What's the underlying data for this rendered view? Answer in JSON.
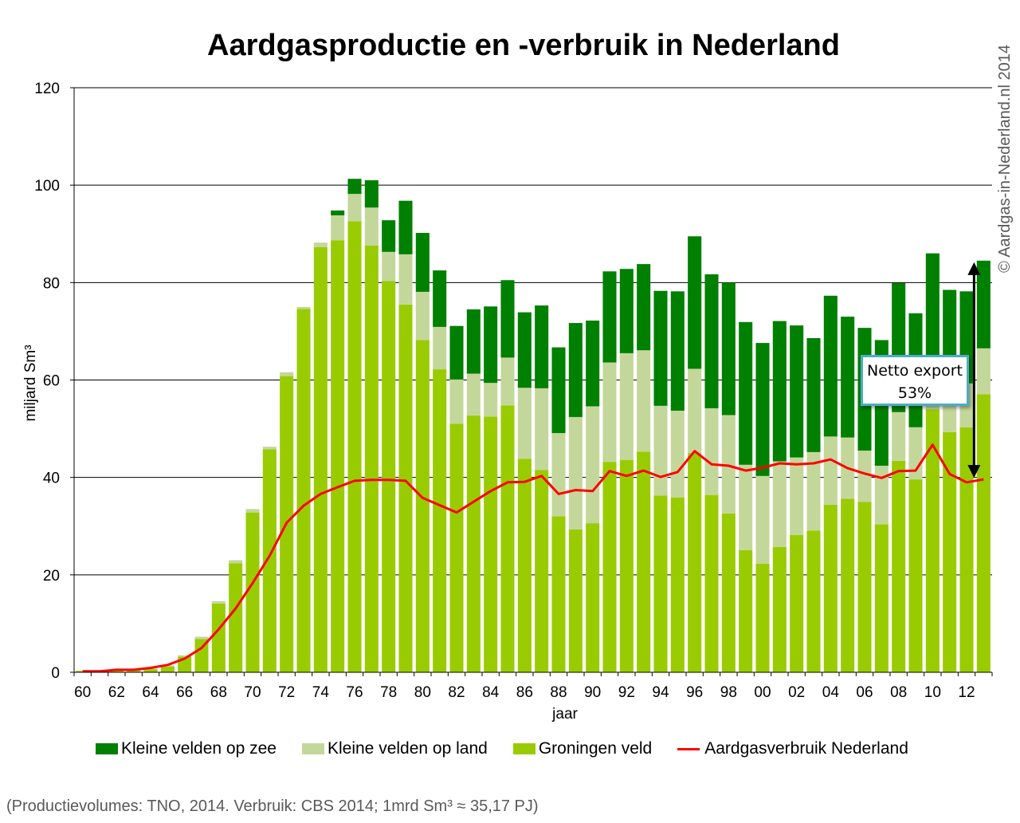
{
  "chart_data": {
    "type": "bar",
    "stacked": true,
    "title": "Aardgasproductie en -verbruik in Nederland",
    "xlabel": "jaar",
    "ylabel": "miljard Sm³",
    "ylim": [
      0,
      120
    ],
    "yticks": [
      "0",
      "20",
      "40",
      "60",
      "80",
      "100",
      "120"
    ],
    "grid": true,
    "legend_position": "bottom",
    "x": [
      1960,
      1961,
      1962,
      1963,
      1964,
      1965,
      1966,
      1967,
      1968,
      1969,
      1970,
      1971,
      1972,
      1973,
      1974,
      1975,
      1976,
      1977,
      1978,
      1979,
      1980,
      1981,
      1982,
      1983,
      1984,
      1985,
      1986,
      1987,
      1988,
      1989,
      1990,
      1991,
      1992,
      1993,
      1994,
      1995,
      1996,
      1997,
      1998,
      1999,
      2000,
      2001,
      2002,
      2003,
      2004,
      2005,
      2006,
      2007,
      2008,
      2009,
      2010,
      2011,
      2012,
      2013
    ],
    "x_tick_labels": [
      "60",
      "62",
      "64",
      "66",
      "68",
      "70",
      "72",
      "74",
      "76",
      "78",
      "80",
      "82",
      "84",
      "86",
      "88",
      "90",
      "92",
      "94",
      "96",
      "98",
      "00",
      "02",
      "04",
      "06",
      "08",
      "10",
      "12"
    ],
    "series": [
      {
        "name": "Groningen veld",
        "color": "#99cc00",
        "values": [
          0.3,
          0.3,
          0.4,
          0.5,
          0.7,
          1.2,
          3.2,
          6.8,
          14.1,
          22.4,
          32.8,
          45.8,
          60.8,
          74.6,
          87.3,
          88.7,
          92.6,
          87.6,
          80.3,
          75.5,
          68.2,
          62.2,
          51.0,
          52.7,
          52.5,
          54.8,
          43.8,
          41.5,
          32.0,
          29.3,
          30.6,
          43.2,
          43.6,
          45.3,
          36.3,
          35.9,
          45.0,
          36.4,
          32.6,
          25.1,
          22.3,
          25.7,
          28.2,
          29.1,
          34.4,
          35.6,
          35.0,
          30.4,
          43.4,
          39.6,
          54.0,
          49.3,
          50.3,
          57.1
        ]
      },
      {
        "name": "Kleine velden op land",
        "color": "#c4d79b",
        "values": [
          0,
          0,
          0,
          0,
          0,
          0.2,
          0.3,
          0.5,
          0.5,
          0.6,
          0.7,
          0.5,
          0.8,
          0.4,
          0.9,
          5.1,
          5.6,
          7.8,
          6.0,
          10.3,
          9.9,
          8.7,
          9.1,
          8.6,
          6.9,
          9.8,
          14.6,
          16.8,
          17.1,
          23.1,
          24.0,
          20.4,
          21.9,
          20.8,
          18.4,
          17.8,
          17.3,
          17.8,
          20.2,
          17.5,
          18.0,
          17.6,
          15.9,
          16.1,
          14.0,
          12.6,
          10.5,
          12.0,
          10.0,
          10.7,
          11.0,
          9.4,
          9.0,
          9.4
        ]
      },
      {
        "name": "Kleine velden op zee",
        "color": "#008000",
        "values": [
          0,
          0,
          0,
          0,
          0,
          0,
          0,
          0,
          0,
          0,
          0,
          0,
          0,
          0,
          0,
          1.0,
          3.1,
          5.6,
          6.5,
          11.0,
          12.1,
          11.6,
          11.0,
          13.2,
          15.7,
          15.9,
          15.5,
          17.0,
          17.6,
          19.3,
          17.6,
          18.7,
          17.3,
          17.7,
          23.6,
          24.5,
          27.2,
          27.5,
          27.2,
          29.3,
          27.3,
          28.8,
          27.1,
          23.4,
          28.9,
          24.8,
          25.2,
          25.8,
          26.5,
          23.4,
          21.0,
          19.8,
          18.9,
          18.0
        ]
      },
      {
        "name": "Aardgasverbruik Nederland",
        "color": "#ff0000",
        "type": "line",
        "values": [
          0.2,
          0.2,
          0.5,
          0.5,
          0.9,
          1.5,
          2.8,
          5.0,
          8.8,
          13.1,
          18.3,
          23.9,
          30.7,
          34.2,
          36.6,
          38.0,
          39.3,
          39.5,
          39.5,
          39.3,
          35.8,
          34.3,
          32.8,
          35.0,
          37.2,
          39.0,
          39.1,
          40.3,
          36.6,
          37.4,
          37.2,
          41.3,
          40.3,
          41.4,
          40.1,
          41.1,
          45.4,
          42.7,
          42.4,
          41.4,
          42.0,
          42.9,
          42.7,
          42.9,
          43.7,
          41.9,
          40.8,
          39.9,
          41.3,
          41.4,
          46.7,
          40.7,
          39.0,
          39.6
        ]
      }
    ],
    "annotation": {
      "label": "Netto export",
      "value": "53%"
    }
  },
  "footnote": "(Productievolumes:  TNO, 2014. Verbruik:  CBS 2014; 1mrd  Sm³ ≈ 35,17 PJ)",
  "copyright": "© Aardgas-in-Nederland.nl  2014"
}
